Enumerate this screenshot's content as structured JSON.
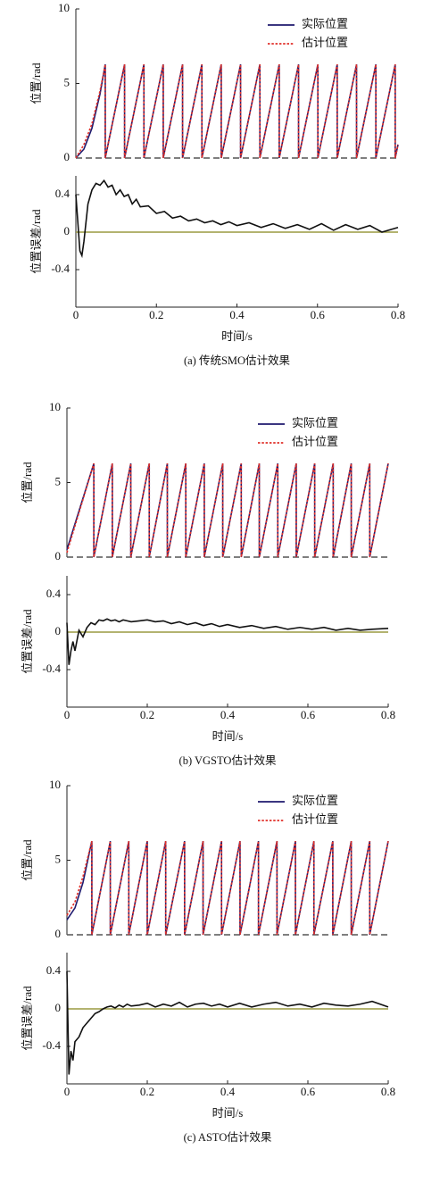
{
  "chart_data": [
    {
      "type": "line",
      "ylabel": "位置/rad",
      "xlim": [
        0,
        0.8
      ],
      "ylim": [
        0,
        10
      ],
      "yticks": [
        0,
        5,
        10
      ],
      "legend": "upper-right",
      "zero_line_color": "#555555",
      "x": [
        0,
        0.02,
        0.04,
        0.06,
        0.073,
        0.073,
        0.121,
        0.121,
        0.169,
        0.169,
        0.217,
        0.217,
        0.265,
        0.265,
        0.313,
        0.313,
        0.361,
        0.361,
        0.409,
        0.409,
        0.457,
        0.457,
        0.505,
        0.505,
        0.553,
        0.553,
        0.601,
        0.601,
        0.649,
        0.649,
        0.697,
        0.697,
        0.745,
        0.745,
        0.793,
        0.793,
        0.8
      ],
      "series": [
        {
          "name": "实际位置",
          "color": "#1f1a6e",
          "line_style": "solid",
          "values": [
            0,
            0.6,
            2,
            4.3,
            6.28,
            0,
            6.28,
            0,
            6.28,
            0,
            6.28,
            0,
            6.28,
            0,
            6.28,
            0,
            6.28,
            0,
            6.28,
            0,
            6.28,
            0,
            6.28,
            0,
            6.28,
            0,
            6.28,
            0,
            6.28,
            0,
            6.28,
            0,
            6.28,
            0,
            6.28,
            0,
            0.9
          ]
        },
        {
          "name": "估计位置",
          "color": "#e0302a",
          "line_style": "dotted",
          "values": [
            0,
            0.9,
            2.3,
            4.5,
            6.28,
            0,
            6.28,
            0,
            6.28,
            0,
            6.28,
            0,
            6.28,
            0,
            6.28,
            0,
            6.28,
            0,
            6.28,
            0,
            6.28,
            0,
            6.28,
            0,
            6.28,
            0,
            6.28,
            0,
            6.28,
            0,
            6.28,
            0,
            6.28,
            0,
            6.28,
            0,
            0.9
          ]
        }
      ]
    },
    {
      "type": "line",
      "ylabel": "位置误差/rad",
      "xlabel": "时间/s",
      "caption": "(a) 传统SMO估计效果",
      "xlim": [
        0,
        0.8
      ],
      "xticks": [
        0,
        0.2,
        0.4,
        0.6,
        0.8
      ],
      "ylim": [
        -0.8,
        0.6
      ],
      "yticks": [
        -0.4,
        0,
        0.4
      ],
      "color": "#111111",
      "zero_line_color": "#9a9a40",
      "x": [
        0,
        0.005,
        0.01,
        0.015,
        0.02,
        0.03,
        0.04,
        0.05,
        0.06,
        0.07,
        0.08,
        0.09,
        0.1,
        0.11,
        0.12,
        0.13,
        0.14,
        0.15,
        0.16,
        0.18,
        0.2,
        0.22,
        0.24,
        0.26,
        0.28,
        0.3,
        0.32,
        0.34,
        0.36,
        0.38,
        0.4,
        0.43,
        0.46,
        0.49,
        0.52,
        0.55,
        0.58,
        0.61,
        0.64,
        0.67,
        0.7,
        0.73,
        0.76,
        0.8
      ],
      "values": [
        0.4,
        0.1,
        -0.2,
        -0.25,
        -0.1,
        0.3,
        0.45,
        0.52,
        0.5,
        0.55,
        0.48,
        0.5,
        0.4,
        0.45,
        0.38,
        0.4,
        0.3,
        0.35,
        0.27,
        0.28,
        0.2,
        0.22,
        0.15,
        0.17,
        0.12,
        0.14,
        0.1,
        0.12,
        0.08,
        0.11,
        0.07,
        0.1,
        0.05,
        0.09,
        0.04,
        0.08,
        0.03,
        0.09,
        0.02,
        0.08,
        0.03,
        0.07,
        0.0,
        0.05
      ]
    },
    {
      "type": "line",
      "ylabel": "位置/rad",
      "xlim": [
        0,
        0.8
      ],
      "ylim": [
        0,
        10
      ],
      "yticks": [
        0,
        5,
        10
      ],
      "legend": "upper-right",
      "zero_line_color": "#555555",
      "x": [
        0,
        0.067,
        0.067,
        0.113,
        0.113,
        0.159,
        0.159,
        0.205,
        0.205,
        0.25,
        0.25,
        0.296,
        0.296,
        0.342,
        0.342,
        0.388,
        0.388,
        0.434,
        0.434,
        0.479,
        0.479,
        0.525,
        0.525,
        0.571,
        0.571,
        0.617,
        0.617,
        0.663,
        0.663,
        0.708,
        0.708,
        0.754,
        0.754,
        0.8
      ],
      "series": [
        {
          "name": "实际位置",
          "color": "#1f1a6e",
          "line_style": "solid",
          "values": [
            0.5,
            6.28,
            0,
            6.28,
            0,
            6.28,
            0,
            6.28,
            0,
            6.28,
            0,
            6.28,
            0,
            6.28,
            0,
            6.28,
            0,
            6.28,
            0,
            6.28,
            0,
            6.28,
            0,
            6.28,
            0,
            6.28,
            0,
            6.28,
            0,
            6.28,
            0,
            6.28,
            0,
            6.28
          ]
        },
        {
          "name": "估计位置",
          "color": "#e0302a",
          "line_style": "dotted",
          "values": [
            0.3,
            6.28,
            0,
            6.28,
            0,
            6.28,
            0,
            6.28,
            0,
            6.28,
            0,
            6.28,
            0,
            6.28,
            0,
            6.28,
            0,
            6.28,
            0,
            6.28,
            0,
            6.28,
            0,
            6.28,
            0,
            6.28,
            0,
            6.28,
            0,
            6.28,
            0,
            6.28,
            0,
            6.28
          ]
        }
      ]
    },
    {
      "type": "line",
      "ylabel": "位置误差/rad",
      "xlabel": "时间/s",
      "caption": "(b) VGSTO估计效果",
      "xlim": [
        0,
        0.8
      ],
      "xticks": [
        0,
        0.2,
        0.4,
        0.6,
        0.8
      ],
      "ylim": [
        -0.8,
        0.6
      ],
      "yticks": [
        -0.4,
        0,
        0.4
      ],
      "color": "#111111",
      "zero_line_color": "#9a9a40",
      "x": [
        0,
        0.005,
        0.01,
        0.015,
        0.02,
        0.03,
        0.04,
        0.05,
        0.06,
        0.07,
        0.08,
        0.09,
        0.1,
        0.11,
        0.12,
        0.13,
        0.14,
        0.15,
        0.16,
        0.18,
        0.2,
        0.22,
        0.24,
        0.26,
        0.28,
        0.3,
        0.32,
        0.34,
        0.36,
        0.38,
        0.4,
        0.43,
        0.46,
        0.49,
        0.52,
        0.55,
        0.58,
        0.61,
        0.64,
        0.67,
        0.7,
        0.73,
        0.76,
        0.8
      ],
      "values": [
        0.1,
        -0.35,
        -0.2,
        -0.1,
        -0.2,
        0.02,
        -0.05,
        0.05,
        0.1,
        0.08,
        0.13,
        0.12,
        0.14,
        0.12,
        0.13,
        0.11,
        0.13,
        0.12,
        0.11,
        0.12,
        0.13,
        0.11,
        0.12,
        0.09,
        0.11,
        0.08,
        0.1,
        0.07,
        0.09,
        0.06,
        0.08,
        0.05,
        0.07,
        0.04,
        0.06,
        0.03,
        0.05,
        0.03,
        0.05,
        0.02,
        0.04,
        0.02,
        0.03,
        0.04
      ]
    },
    {
      "type": "line",
      "ylabel": "位置/rad",
      "xlim": [
        0,
        0.8
      ],
      "ylim": [
        0,
        10
      ],
      "yticks": [
        0,
        5,
        10
      ],
      "legend": "upper-right",
      "zero_line_color": "#555555",
      "x": [
        0,
        0.02,
        0.04,
        0.062,
        0.062,
        0.108,
        0.108,
        0.154,
        0.154,
        0.2,
        0.2,
        0.246,
        0.246,
        0.293,
        0.293,
        0.339,
        0.339,
        0.385,
        0.385,
        0.431,
        0.431,
        0.477,
        0.477,
        0.523,
        0.523,
        0.569,
        0.569,
        0.615,
        0.615,
        0.662,
        0.662,
        0.708,
        0.708,
        0.754,
        0.754,
        0.8
      ],
      "series": [
        {
          "name": "实际位置",
          "color": "#1f1a6e",
          "line_style": "solid",
          "values": [
            1.0,
            1.8,
            3.5,
            6.28,
            0,
            6.28,
            0,
            6.28,
            0,
            6.28,
            0,
            6.28,
            0,
            6.28,
            0,
            6.28,
            0,
            6.28,
            0,
            6.28,
            0,
            6.28,
            0,
            6.28,
            0,
            6.28,
            0,
            6.28,
            0,
            6.28,
            0,
            6.28,
            0,
            6.28,
            0,
            6.28
          ]
        },
        {
          "name": "估计位置",
          "color": "#e0302a",
          "line_style": "dotted",
          "values": [
            1.3,
            2.2,
            3.9,
            6.28,
            0,
            6.28,
            0,
            6.28,
            0,
            6.28,
            0,
            6.28,
            0,
            6.28,
            0,
            6.28,
            0,
            6.28,
            0,
            6.28,
            0,
            6.28,
            0,
            6.28,
            0,
            6.28,
            0,
            6.28,
            0,
            6.28,
            0,
            6.28,
            0,
            6.28,
            0,
            6.28
          ]
        }
      ]
    },
    {
      "type": "line",
      "ylabel": "位置误差/rad",
      "xlabel": "时间/s",
      "caption": "(c) ASTO估计效果",
      "xlim": [
        0,
        0.8
      ],
      "xticks": [
        0,
        0.2,
        0.4,
        0.6,
        0.8
      ],
      "ylim": [
        -0.8,
        0.6
      ],
      "yticks": [
        -0.4,
        0,
        0.4
      ],
      "color": "#111111",
      "zero_line_color": "#9a9a40",
      "x": [
        0,
        0.005,
        0.01,
        0.015,
        0.02,
        0.03,
        0.04,
        0.05,
        0.06,
        0.07,
        0.08,
        0.09,
        0.1,
        0.11,
        0.12,
        0.13,
        0.14,
        0.15,
        0.16,
        0.18,
        0.2,
        0.22,
        0.24,
        0.26,
        0.28,
        0.3,
        0.32,
        0.34,
        0.36,
        0.38,
        0.4,
        0.43,
        0.46,
        0.49,
        0.52,
        0.55,
        0.58,
        0.61,
        0.64,
        0.67,
        0.7,
        0.73,
        0.76,
        0.8
      ],
      "values": [
        0.4,
        -0.7,
        -0.45,
        -0.55,
        -0.35,
        -0.3,
        -0.2,
        -0.15,
        -0.1,
        -0.05,
        -0.03,
        0.0,
        0.02,
        0.03,
        0.01,
        0.04,
        0.02,
        0.05,
        0.03,
        0.04,
        0.06,
        0.02,
        0.05,
        0.03,
        0.07,
        0.02,
        0.05,
        0.06,
        0.03,
        0.05,
        0.02,
        0.06,
        0.02,
        0.05,
        0.07,
        0.03,
        0.05,
        0.02,
        0.06,
        0.04,
        0.03,
        0.05,
        0.08,
        0.02
      ]
    }
  ]
}
